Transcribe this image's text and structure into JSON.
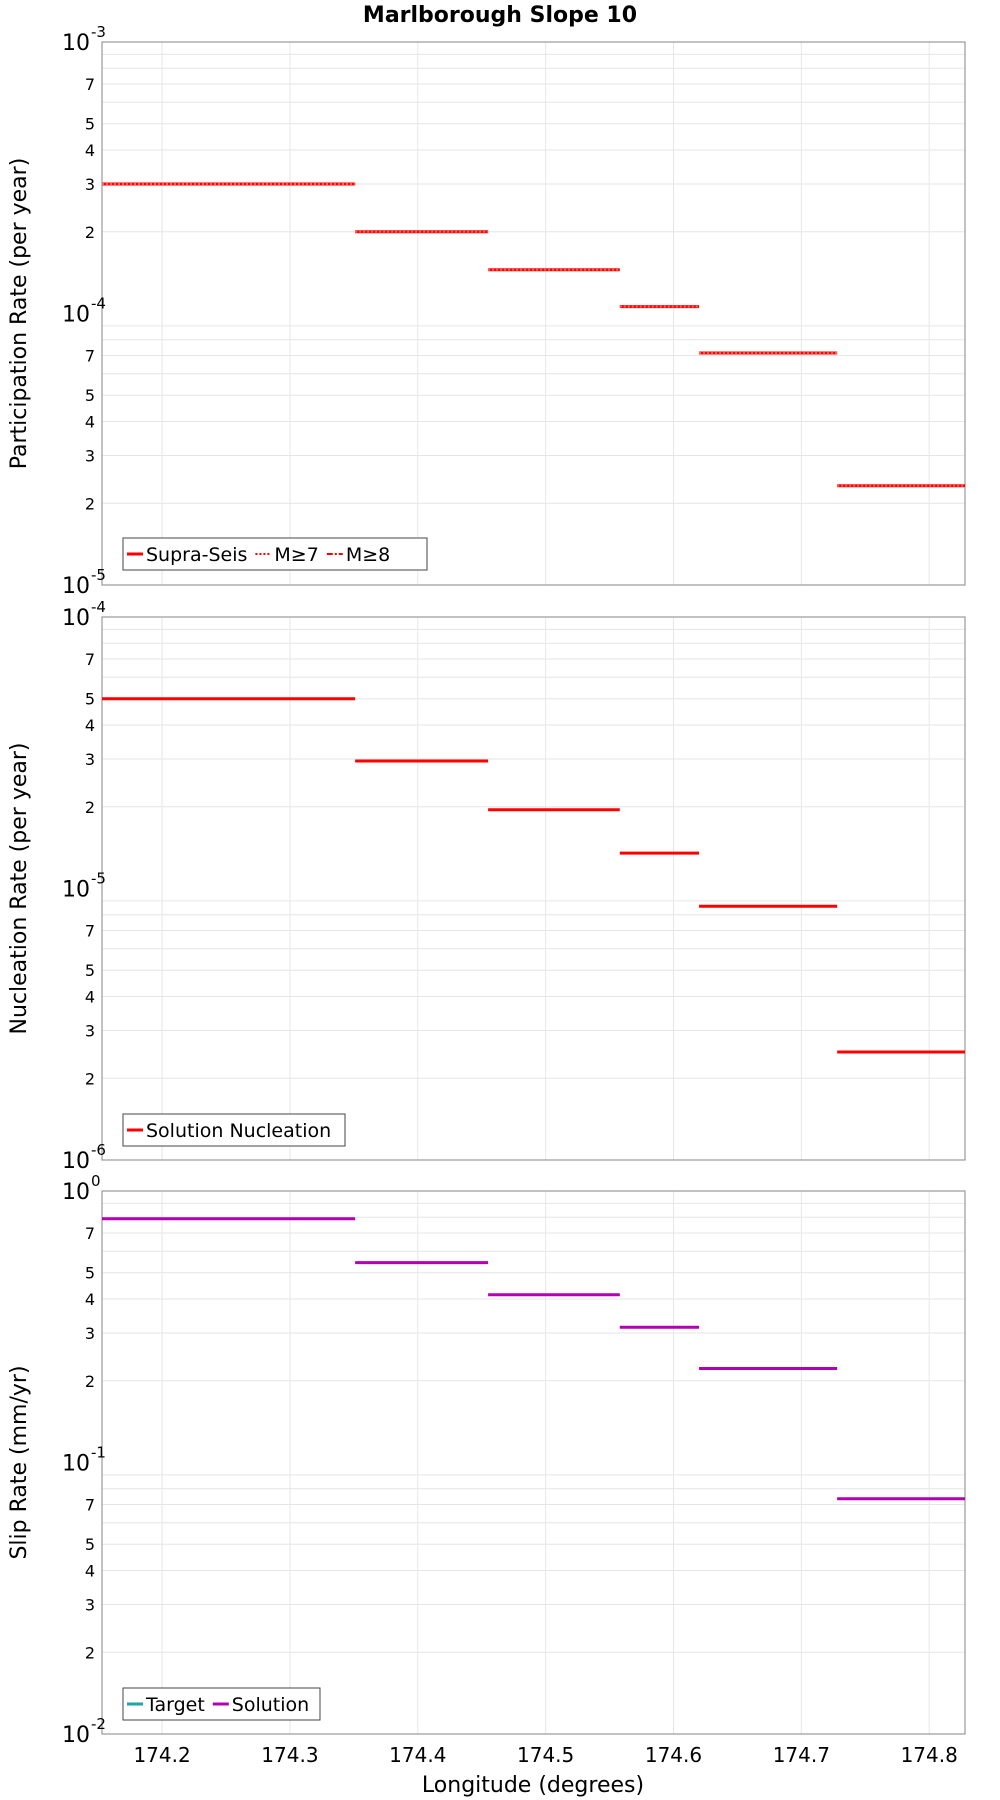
{
  "title": "Marlborough Slope 10",
  "xlabel": "Longitude (degrees)",
  "colors": {
    "red": "#ff0000",
    "magenta": "#b400b4",
    "teal": "#1aa6a6",
    "grid": "#e6e6e6",
    "frame": "#999999"
  },
  "chart_data": [
    {
      "type": "line",
      "ylabel": "Participation Rate (per year)",
      "yscale": "log",
      "ylim": [
        1e-05,
        0.001
      ],
      "xlim": [
        174.153,
        174.828
      ],
      "xticks": [
        "174.2",
        "174.3",
        "174.4",
        "174.5",
        "174.6",
        "174.7",
        "174.8"
      ],
      "yticks_major": [
        {
          "base": "10",
          "exp": "-5"
        },
        {
          "base": "10",
          "exp": "-4"
        },
        {
          "base": "10",
          "exp": "-3"
        }
      ],
      "yticks_minor": [
        "2",
        "3",
        "4",
        "5",
        "7"
      ],
      "legend": [
        "Supra-Seis",
        "M≥7",
        "M≥8"
      ],
      "series": [
        {
          "name": "Supra-Seis",
          "color": "#ff0000",
          "segments": [
            {
              "x": [
                174.153,
                174.351
              ],
              "y": 0.0003
            },
            {
              "x": [
                174.351,
                174.455
              ],
              "y": 0.0002
            },
            {
              "x": [
                174.455,
                174.558
              ],
              "y": 0.000145
            },
            {
              "x": [
                174.558,
                174.62
              ],
              "y": 0.000106
            },
            {
              "x": [
                174.62,
                174.728
              ],
              "y": 7.15e-05
            },
            {
              "x": [
                174.728,
                174.828
              ],
              "y": 2.32e-05
            }
          ]
        },
        {
          "name": "M≥7",
          "color": "#ff0000",
          "segments": [
            {
              "x": [
                174.153,
                174.351
              ],
              "y": 0.0003
            },
            {
              "x": [
                174.351,
                174.455
              ],
              "y": 0.0002
            },
            {
              "x": [
                174.455,
                174.558
              ],
              "y": 0.000145
            },
            {
              "x": [
                174.558,
                174.62
              ],
              "y": 0.000106
            },
            {
              "x": [
                174.62,
                174.728
              ],
              "y": 7.15e-05
            },
            {
              "x": [
                174.728,
                174.828
              ],
              "y": 2.32e-05
            }
          ]
        },
        {
          "name": "M≥8",
          "color": "#ff0000",
          "segments": []
        }
      ]
    },
    {
      "type": "line",
      "ylabel": "Nucleation Rate (per year)",
      "yscale": "log",
      "ylim": [
        1e-06,
        0.0001
      ],
      "xlim": [
        174.153,
        174.828
      ],
      "xticks": [
        "174.2",
        "174.3",
        "174.4",
        "174.5",
        "174.6",
        "174.7",
        "174.8"
      ],
      "yticks_major": [
        {
          "base": "10",
          "exp": "-6"
        },
        {
          "base": "10",
          "exp": "-5"
        },
        {
          "base": "10",
          "exp": "-4"
        }
      ],
      "yticks_minor": [
        "2",
        "3",
        "4",
        "5",
        "7"
      ],
      "legend": [
        "Solution Nucleation"
      ],
      "series": [
        {
          "name": "Solution Nucleation",
          "color": "#ff0000",
          "segments": [
            {
              "x": [
                174.153,
                174.351
              ],
              "y": 5e-05
            },
            {
              "x": [
                174.351,
                174.455
              ],
              "y": 2.95e-05
            },
            {
              "x": [
                174.455,
                174.558
              ],
              "y": 1.95e-05
            },
            {
              "x": [
                174.558,
                174.62
              ],
              "y": 1.35e-05
            },
            {
              "x": [
                174.62,
                174.728
              ],
              "y": 8.6e-06
            },
            {
              "x": [
                174.728,
                174.828
              ],
              "y": 2.5e-06
            }
          ]
        }
      ]
    },
    {
      "type": "line",
      "ylabel": "Slip Rate (mm/yr)",
      "yscale": "log",
      "ylim": [
        0.01,
        1
      ],
      "xlim": [
        174.153,
        174.828
      ],
      "xticks": [
        "174.2",
        "174.3",
        "174.4",
        "174.5",
        "174.6",
        "174.7",
        "174.8"
      ],
      "yticks_major": [
        {
          "base": "10",
          "exp": "-2"
        },
        {
          "base": "10",
          "exp": "-1"
        },
        {
          "base": "10",
          "exp": "0"
        }
      ],
      "yticks_minor": [
        "2",
        "3",
        "4",
        "5",
        "7"
      ],
      "legend": [
        "Target",
        "Solution"
      ],
      "series": [
        {
          "name": "Target",
          "color": "#1aa6a6",
          "segments": []
        },
        {
          "name": "Solution",
          "color": "#b400b4",
          "segments": [
            {
              "x": [
                174.153,
                174.351
              ],
              "y": 0.79
            },
            {
              "x": [
                174.351,
                174.455
              ],
              "y": 0.545
            },
            {
              "x": [
                174.455,
                174.558
              ],
              "y": 0.415
            },
            {
              "x": [
                174.558,
                174.62
              ],
              "y": 0.315
            },
            {
              "x": [
                174.62,
                174.728
              ],
              "y": 0.222
            },
            {
              "x": [
                174.728,
                174.828
              ],
              "y": 0.0735
            }
          ]
        }
      ]
    }
  ]
}
